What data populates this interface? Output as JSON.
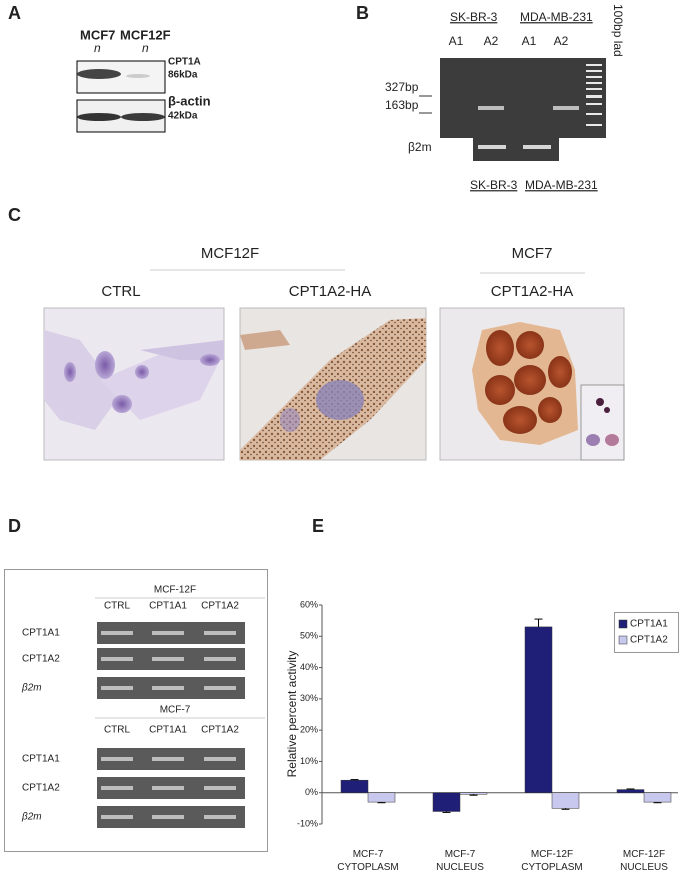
{
  "panels": {
    "a": {
      "label": "A",
      "cell_lines": [
        "MCF7",
        "MCF12F"
      ],
      "cell_line_notes": [
        "n",
        "n"
      ],
      "bands": [
        {
          "name": "CPT1A",
          "size": "86kDa"
        },
        {
          "name": "β-actin",
          "size": "42kDa"
        }
      ]
    },
    "b": {
      "label": "B",
      "groups": [
        "SK-BR-3",
        "MDA-MB-231"
      ],
      "lanes": [
        "A1",
        "A2",
        "A1",
        "A2"
      ],
      "ladder": "100bp lad",
      "markers": [
        "327bp",
        "163bp"
      ],
      "control": "β2m",
      "bottom_groups": [
        "SK-BR-3",
        "MDA-MB-231"
      ]
    },
    "c": {
      "label": "C",
      "groups": [
        "MCF12F",
        "MCF7"
      ],
      "images": [
        "CTRL",
        "CPT1A2-HA",
        "CPT1A2-HA"
      ]
    },
    "d": {
      "label": "D",
      "blocks": [
        {
          "title": "MCF-12F",
          "columns": [
            "CTRL",
            "CPT1A1",
            "CPT1A2"
          ],
          "rows": [
            "CPT1A1",
            "CPT1A2",
            "β2m"
          ]
        },
        {
          "title": "MCF-7",
          "columns": [
            "CTRL",
            "CPT1A1",
            "CPT1A2"
          ],
          "rows": [
            "CPT1A1",
            "CPT1A2",
            "β2m"
          ]
        }
      ]
    },
    "e": {
      "label": "E"
    }
  },
  "chart_data": {
    "type": "bar",
    "y_label": "Relative percent activity",
    "categories": [
      "MCF-7 CYTOPLASM",
      "MCF-7 NUCLEUS",
      "MCF-12F CYTOPLASM",
      "MCF-12F NUCLEUS"
    ],
    "series": [
      {
        "name": "CPT1A1",
        "color": "#1f1f78",
        "values": [
          4,
          -6,
          53,
          1
        ],
        "errors": [
          0.2,
          0.3,
          2.5,
          0.2
        ]
      },
      {
        "name": "CPT1A2",
        "color": "#c8c8ee",
        "values": [
          -3,
          -0.5,
          -5,
          -3
        ],
        "errors": [
          0.2,
          0.3,
          0.3,
          0.2
        ]
      }
    ],
    "ylim": [
      -10,
      60
    ],
    "yticks": [
      {
        "value": -10,
        "label": "-10%"
      },
      {
        "value": 0,
        "label": "0%"
      },
      {
        "value": 10,
        "label": "10%"
      },
      {
        "value": 20,
        "label": "20%"
      },
      {
        "value": 30,
        "label": "30%"
      },
      {
        "value": 40,
        "label": "40%"
      },
      {
        "value": 50,
        "label": "50%"
      },
      {
        "value": 60,
        "label": "60%"
      }
    ],
    "legend": "top-right"
  }
}
